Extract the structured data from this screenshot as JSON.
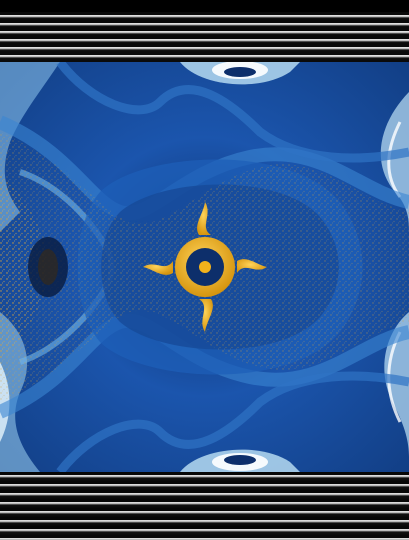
{
  "image": {
    "kind": "marbled-pattern-with-sun-emblem",
    "colors": {
      "deep_blue": "#0a2f6e",
      "royal_blue": "#1c56b0",
      "sky_blue": "#55a7e6",
      "ice_blue": "#bfe3f6",
      "gold": "#f2b21c",
      "dark_gold": "#c88d10",
      "stripe_light": "#dcdcdc",
      "stripe_dark": "#0a0a0a"
    },
    "emblem_icon": "sun-icon"
  }
}
